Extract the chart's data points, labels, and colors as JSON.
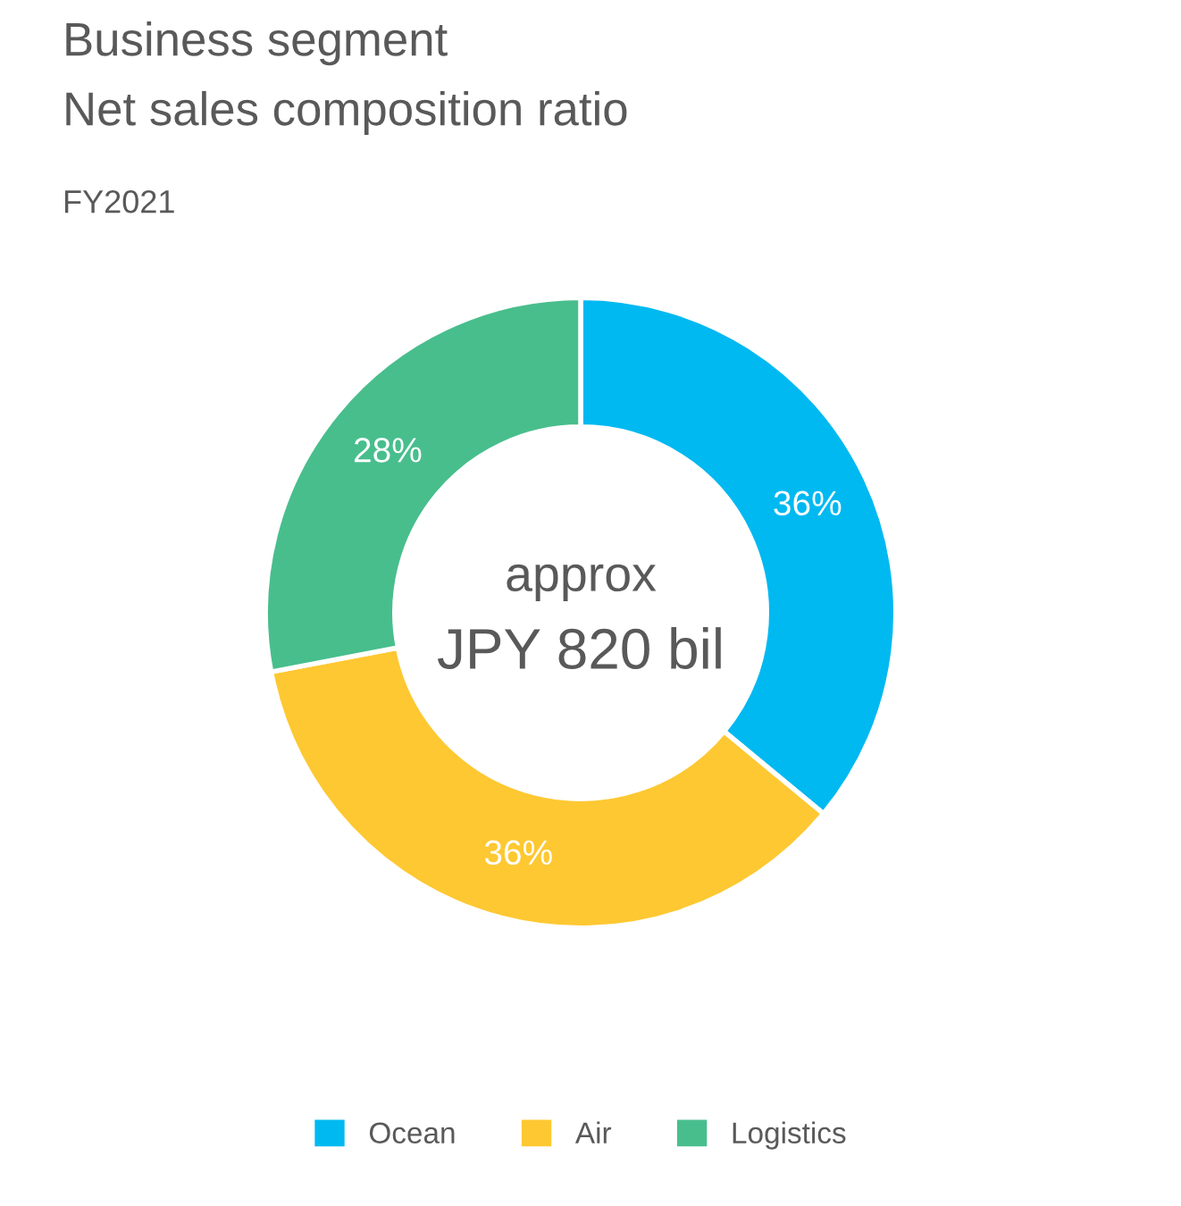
{
  "chart_data": {
    "type": "donut",
    "title": "Business segment\nNet sales composition ratio",
    "subtitle": "FY2021",
    "categories": [
      "Ocean",
      "Air",
      "Logistics"
    ],
    "values": [
      36,
      36,
      28
    ],
    "colors": [
      "#00b9f1",
      "#fec832",
      "#48be8d"
    ],
    "value_labels": [
      "36%",
      "36%",
      "28%"
    ],
    "annotations": [
      "approx",
      "JPY 820 bil"
    ],
    "legend": "bottom"
  }
}
